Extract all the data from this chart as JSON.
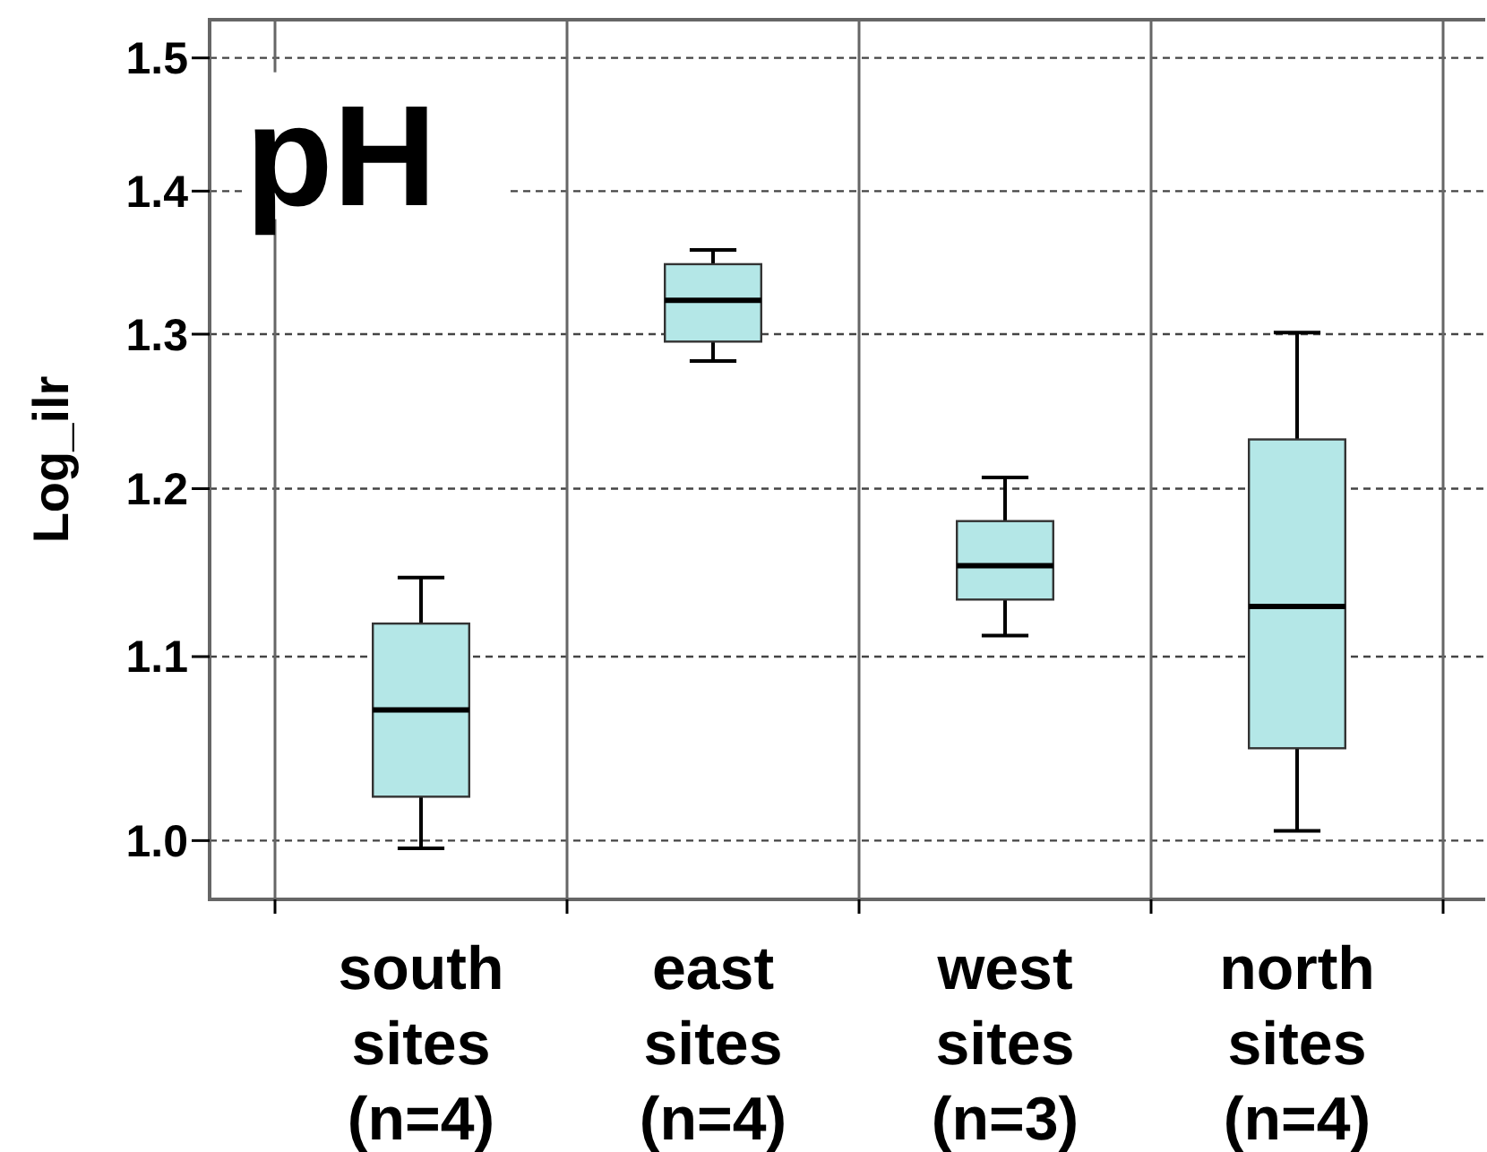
{
  "chart_data": {
    "type": "box",
    "title": "pH",
    "ylabel": "Log_ilr",
    "categories": [
      "south sites (n=4)",
      "east sites (n=4)",
      "west sites (n=3)",
      "north sites (n=4)"
    ],
    "color": "#b4e7e7",
    "boxes": [
      {
        "low": 0.996,
        "q1": 1.023,
        "median": 1.07,
        "q3": 1.119,
        "high": 1.146
      },
      {
        "low": 1.282,
        "q1": 1.295,
        "median": 1.323,
        "q3": 1.348,
        "high": 1.358
      },
      {
        "low": 1.112,
        "q1": 1.133,
        "median": 1.153,
        "q3": 1.18,
        "high": 1.207
      },
      {
        "low": 1.005,
        "q1": 1.049,
        "median": 1.129,
        "q3": 1.231,
        "high": 1.301
      }
    ],
    "log": true,
    "ylim": [
      0.97,
      1.53
    ],
    "yticks": [
      {
        "value": 1.0,
        "label": "1.0"
      },
      1.1,
      1.2,
      1.3,
      1.4,
      1.5
    ],
    "grid": true,
    "line_style": "dashed"
  }
}
